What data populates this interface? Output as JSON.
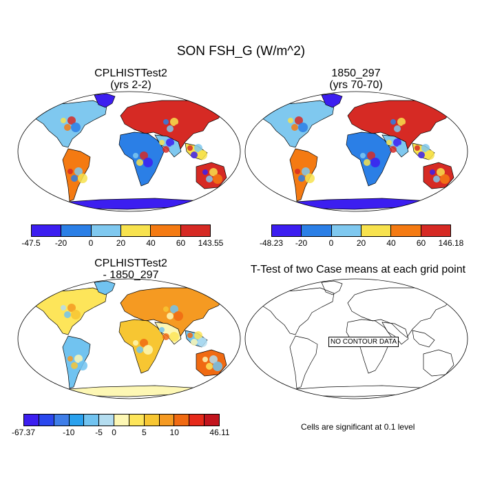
{
  "page_title": "SON FSH_G (W/m^2)",
  "colors": {
    "ocean": "#ffffff",
    "land_default": "#7fc8ef",
    "coast": "#000000"
  },
  "panels": [
    {
      "id": "p1",
      "title_line1": "CPLHISTTest2",
      "title_line2": "(yrs 2-2)",
      "colorbar": {
        "colors": [
          "#3c1ef0",
          "#2b7fe6",
          "#7fc8ef",
          "#f7e24e",
          "#f47a12",
          "#d62a24"
        ],
        "labels": [
          "-47.5",
          "-20",
          "0",
          "20",
          "40",
          "60",
          "143.55"
        ]
      }
    },
    {
      "id": "p2",
      "title_line1": "1850_297",
      "title_line2": "(yrs 70-70)",
      "colorbar": {
        "colors": [
          "#3c1ef0",
          "#2b7fe6",
          "#7fc8ef",
          "#f7e24e",
          "#f47a12",
          "#d62a24"
        ],
        "labels": [
          "-48.23",
          "-20",
          "0",
          "20",
          "40",
          "60",
          "146.18"
        ]
      }
    },
    {
      "id": "p3",
      "title_line1": "CPLHISTTest2",
      "title_line2": "- 1850_297",
      "colorbar": {
        "colors": [
          "#3c1ef0",
          "#2b48ee",
          "#3f7ee8",
          "#2aa1ee",
          "#71c3f0",
          "#b4ddf0",
          "#fdf7b4",
          "#fde55a",
          "#f7c632",
          "#f59a22",
          "#f06a12",
          "#e62a1a",
          "#c2141e"
        ],
        "labels": [
          "-67.37",
          "-10",
          "-5",
          "0",
          "5",
          "10",
          "46.11"
        ]
      }
    },
    {
      "id": "p4",
      "title_line1": "T-Test of two Case means at each grid point",
      "no_data_label": "NO CONTOUR DATA",
      "note": "Cells are significant at 0.1 level"
    }
  ]
}
